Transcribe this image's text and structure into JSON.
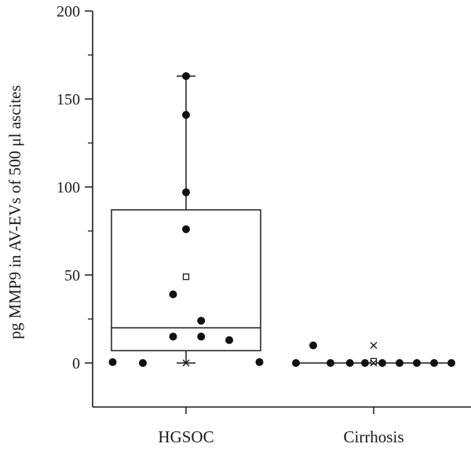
{
  "chart_data": {
    "type": "box",
    "title": "",
    "xlabel": "",
    "ylabel": "pg MMP9 in AV-EVs of 500 μl ascites",
    "ylim": [
      -25,
      200
    ],
    "yticks": [
      0,
      50,
      100,
      150,
      200
    ],
    "categories": [
      "HGSOC",
      "Cirrhosis"
    ],
    "grid": false,
    "boxes": [
      {
        "category": "HGSOC",
        "q1": 7,
        "median": 20,
        "q3": 87,
        "whisker_low": 0,
        "whisker_high": 163,
        "mean": 49,
        "extreme_low": 0,
        "points": [
          {
            "offset": -0.34,
            "y": 0.5
          },
          {
            "offset": -0.2,
            "y": 0
          },
          {
            "offset": 0.34,
            "y": 0.5
          },
          {
            "offset": -0.06,
            "y": 15
          },
          {
            "offset": 0.07,
            "y": 15
          },
          {
            "offset": 0.2,
            "y": 13
          },
          {
            "offset": 0.07,
            "y": 24
          },
          {
            "offset": -0.06,
            "y": 39
          },
          {
            "offset": 0,
            "y": 76
          },
          {
            "offset": 0,
            "y": 97
          },
          {
            "offset": 0,
            "y": 141
          },
          {
            "offset": 0,
            "y": 163
          }
        ]
      },
      {
        "category": "Cirrhosis",
        "q1": 0,
        "median": 0,
        "q3": 0,
        "whisker_low": 0,
        "whisker_high": 0,
        "mean": 1,
        "extreme_high": 10,
        "extreme_low": 0,
        "points": [
          {
            "offset": -0.28,
            "y": 10
          },
          {
            "offset": -0.36,
            "y": 0
          },
          {
            "offset": -0.2,
            "y": 0
          },
          {
            "offset": -0.11,
            "y": 0
          },
          {
            "offset": -0.04,
            "y": 0
          },
          {
            "offset": 0.04,
            "y": 0
          },
          {
            "offset": 0.12,
            "y": 0
          },
          {
            "offset": 0.2,
            "y": 0
          },
          {
            "offset": 0.28,
            "y": 0
          },
          {
            "offset": 0.36,
            "y": 0
          }
        ]
      }
    ]
  }
}
